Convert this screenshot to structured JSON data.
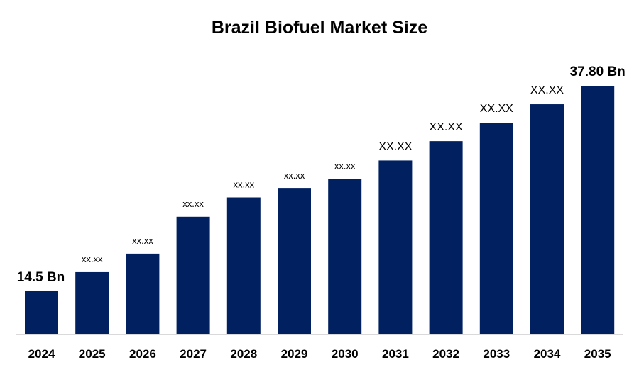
{
  "chart_data": {
    "type": "bar",
    "title": "Brazil Biofuel Market Size",
    "xlabel": "",
    "ylabel": "",
    "categories": [
      "2024",
      "2025",
      "2026",
      "2027",
      "2028",
      "2029",
      "2030",
      "2031",
      "2032",
      "2033",
      "2034",
      "2035"
    ],
    "values": [
      14.5,
      16.6,
      18.7,
      22.9,
      25.1,
      26.1,
      27.2,
      29.3,
      31.5,
      33.6,
      35.7,
      37.8
    ],
    "data_labels": [
      "14.5 Bn",
      "xx.xx",
      "xx.xx",
      "xx.xx",
      "xx.xx",
      "xx.xx",
      "xx.xx",
      "XX.XX",
      "XX.XX",
      "XX.XX",
      "XX.XX",
      "37.80 Bn"
    ],
    "ylim": [
      9.5,
      40
    ],
    "grid": false,
    "legend": "none",
    "bar_color": "#002060",
    "axis_color": "#d9d9d9"
  }
}
